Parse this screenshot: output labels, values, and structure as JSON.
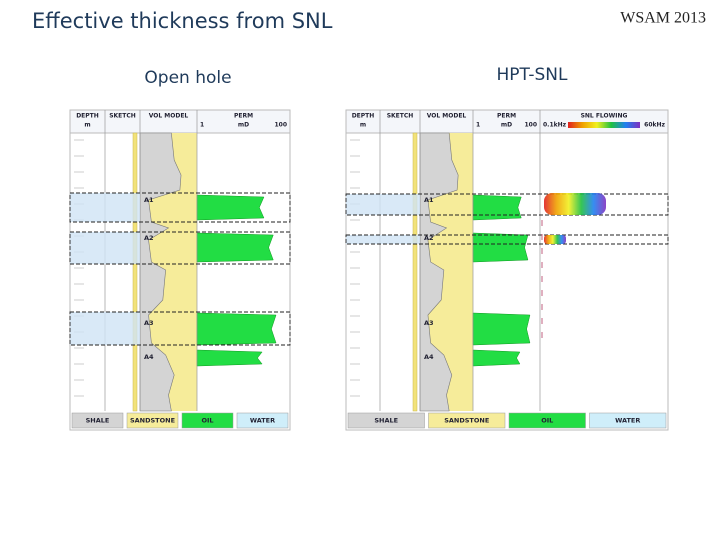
{
  "header": {
    "title": "Effective thickness from SNL",
    "tag": "WSAM 2013"
  },
  "panels": [
    {
      "title": "Open hole",
      "columns": [
        "DEPTH",
        "SKETCH",
        "VOL MODEL",
        "PERM"
      ],
      "depth_unit": "m",
      "perm_min": "1",
      "perm_unit": "mD",
      "perm_max": "100",
      "zones": [
        "A1",
        "A2",
        "A3",
        "A4"
      ],
      "legend": [
        "SHALE",
        "SANDSTONE",
        "OIL",
        "WATER"
      ]
    },
    {
      "title": "HPT-SNL",
      "columns": [
        "DEPTH",
        "SKETCH",
        "VOL MODEL",
        "PERM"
      ],
      "depth_unit": "m",
      "perm_min": "1",
      "perm_unit": "mD",
      "perm_max": "100",
      "snl": {
        "title": "SNL FLOWING",
        "min": "0.1kHz",
        "max": "60kHz"
      },
      "zones": [
        "A1",
        "A2",
        "A3",
        "A4"
      ],
      "legend": [
        "SHALE",
        "SANDSTONE",
        "OIL",
        "WATER"
      ]
    }
  ]
}
